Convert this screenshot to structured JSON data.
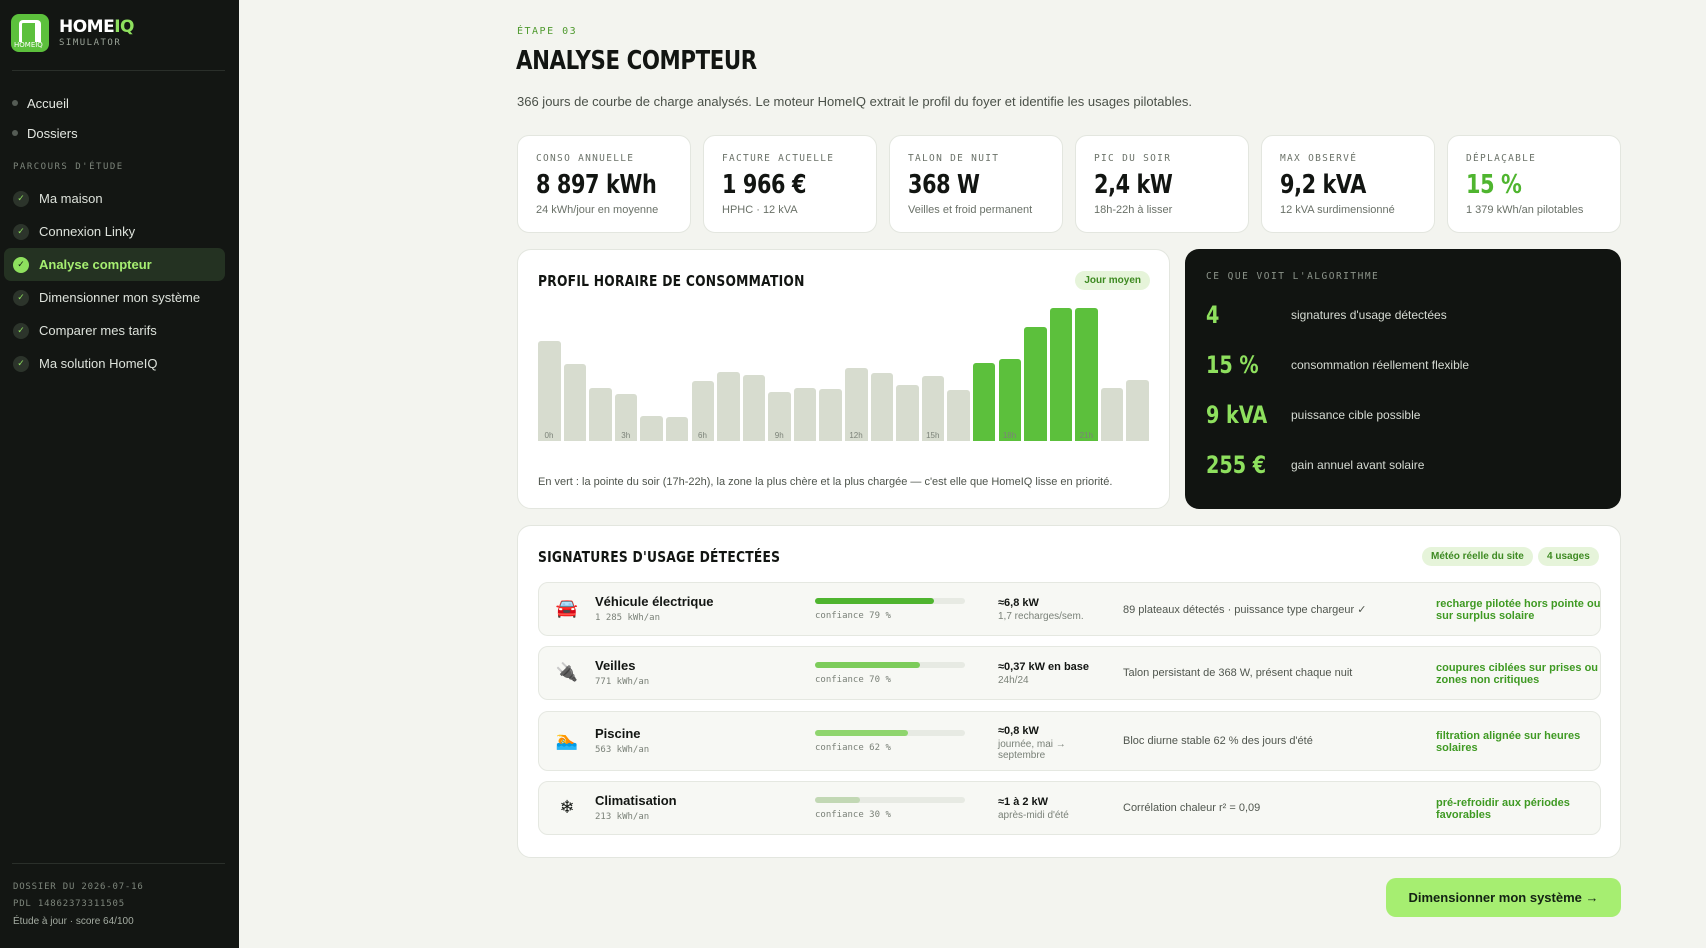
{
  "brand": {
    "name_main": "HOME",
    "name_accent": "IQ",
    "subtitle": "SIMULATOR",
    "logo_text": "HOMEIQ"
  },
  "nav": {
    "items": [
      "Accueil",
      "Dossiers"
    ]
  },
  "steps": {
    "label": "PARCOURS D'ÉTUDE",
    "items": [
      {
        "label": "Ma maison",
        "active": false
      },
      {
        "label": "Connexion Linky",
        "active": false
      },
      {
        "label": "Analyse compteur",
        "active": true
      },
      {
        "label": "Dimensionner mon système",
        "active": false
      },
      {
        "label": "Comparer mes tarifs",
        "active": false
      },
      {
        "label": "Ma solution HomeIQ",
        "active": false
      }
    ],
    "check": "✓"
  },
  "footer": {
    "dossier": "DOSSIER DU 2026-07-16",
    "pdl": "PDL 14862373311505",
    "status": "Étude à jour · score 64/100"
  },
  "header": {
    "eyebrow": "ÉTAPE 03",
    "title": "ANALYSE COMPTEUR",
    "description": "366 jours de courbe de charge analysés. Le moteur HomeIQ extrait le profil du foyer et identifie les usages pilotables."
  },
  "kpis": [
    {
      "label": "CONSO ANNUELLE",
      "value": "8 897 kWh",
      "sub": "24 kWh/jour en moyenne",
      "accent": false
    },
    {
      "label": "FACTURE ACTUELLE",
      "value": "1 966 €",
      "sub": "HPHC · 12 kVA",
      "accent": false
    },
    {
      "label": "TALON DE NUIT",
      "value": "368 W",
      "sub": "Veilles et froid permanent",
      "accent": false
    },
    {
      "label": "PIC DU SOIR",
      "value": "2,4 kW",
      "sub": "18h-22h à lisser",
      "accent": false
    },
    {
      "label": "MAX OBSERVÉ",
      "value": "9,2 kVA",
      "sub": "12 kVA surdimensionné",
      "accent": false
    },
    {
      "label": "DÉPLAÇABLE",
      "value": "15 %",
      "sub": "1 379 kWh/an pilotables",
      "accent": true
    }
  ],
  "chart": {
    "title": "PROFIL HORAIRE DE CONSOMMATION",
    "badge": "Jour moyen",
    "note": "En vert : la pointe du soir (17h-22h), la zone la plus chère et la plus chargée — c'est elle que HomeIQ lisse en priorité.",
    "colors": {
      "base": "#d7dccf",
      "peak": "#5cc03c"
    }
  },
  "chart_data": {
    "type": "bar",
    "categories": [
      "0h",
      "1h",
      "2h",
      "3h",
      "4h",
      "5h",
      "6h",
      "7h",
      "8h",
      "9h",
      "10h",
      "11h",
      "12h",
      "13h",
      "14h",
      "15h",
      "16h",
      "17h",
      "18h",
      "19h",
      "20h",
      "21h",
      "22h",
      "23h"
    ],
    "tick_labels": [
      "0h",
      "3h",
      "6h",
      "9h",
      "12h",
      "15h",
      "18h",
      "21h"
    ],
    "values": [
      0.75,
      0.58,
      0.4,
      0.35,
      0.19,
      0.18,
      0.45,
      0.52,
      0.5,
      0.37,
      0.4,
      0.39,
      0.55,
      0.51,
      0.42,
      0.49,
      0.38,
      0.59,
      0.62,
      0.86,
      1.0,
      1.0,
      0.4,
      0.46
    ],
    "peak_range": [
      17,
      21
    ],
    "title": "PROFIL HORAIRE DE CONSOMMATION",
    "legend": "none",
    "grid": false
  },
  "algo": {
    "label": "CE QUE VOIT L'ALGORITHME",
    "rows": [
      {
        "value": "4",
        "text": "signatures d'usage détectées"
      },
      {
        "value": "15 %",
        "text": "consommation réellement flexible"
      },
      {
        "value": "9 kVA",
        "text": "puissance cible possible"
      },
      {
        "value": "255 €",
        "text": "gain annuel avant solaire"
      }
    ]
  },
  "signatures": {
    "title": "SIGNATURES D'USAGE DÉTECTÉES",
    "badges": [
      "Météo réelle du site",
      "4 usages"
    ],
    "rows": [
      {
        "icon": "car-icon",
        "glyph": "🚘",
        "name": "Véhicule électrique",
        "kwh": "1 285 kWh/an",
        "confidence": 0.79,
        "conf_label": "confiance 79 %",
        "conf_color": "#4fb52f",
        "power": "≈6,8 kW",
        "power_sub": "1,7 recharges/sem.",
        "desc": "89 plateaux détectés · puissance type chargeur ✓",
        "action": "recharge pilotée hors pointe ou sur surplus solaire"
      },
      {
        "icon": "plug-icon",
        "glyph": "🔌",
        "name": "Veilles",
        "kwh": "771 kWh/an",
        "confidence": 0.7,
        "conf_label": "confiance 70 %",
        "conf_color": "#7ccc5a",
        "power": "≈0,37 kW en base",
        "power_sub": "24h/24",
        "desc": "Talon persistant de 368 W, présent chaque nuit",
        "action": "coupures ciblées sur prises ou zones non critiques"
      },
      {
        "icon": "pool-icon",
        "glyph": "🏊",
        "name": "Piscine",
        "kwh": "563 kWh/an",
        "confidence": 0.62,
        "conf_label": "confiance 62 %",
        "conf_color": "#8fd56e",
        "power": "≈0,8 kW",
        "power_sub": "journée, mai → septembre",
        "desc": "Bloc diurne stable 62 % des jours d'été",
        "action": "filtration alignée sur heures solaires"
      },
      {
        "icon": "snowflake-icon",
        "glyph": "❄",
        "name": "Climatisation",
        "kwh": "213 kWh/an",
        "confidence": 0.3,
        "conf_label": "confiance 30 %",
        "conf_color": "#c2d8b4",
        "power": "≈1 à 2 kW",
        "power_sub": "après-midi d'été",
        "desc": "Corrélation chaleur r² = 0,09",
        "action": "pré-refroidir aux périodes favorables"
      }
    ]
  },
  "cta": {
    "label": "Dimensionner mon système →"
  }
}
